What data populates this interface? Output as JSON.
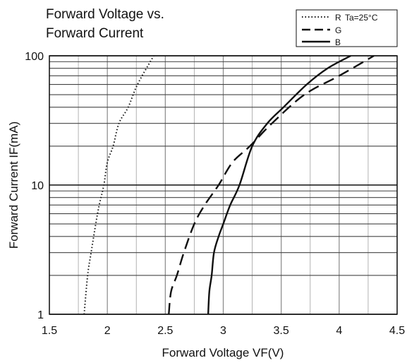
{
  "chart_data": {
    "type": "line",
    "title_lines": [
      "Forward Voltage vs.",
      "Forward Current"
    ],
    "xlabel": "Forward Voltage VF(V)",
    "ylabel": "Forward Current IF(mA)",
    "xlim": [
      1.5,
      4.5
    ],
    "ylim": [
      1,
      100
    ],
    "yscale": "log",
    "x_ticks": [
      1.5,
      2,
      2.5,
      3,
      3.5,
      4,
      4.5
    ],
    "x_tick_labels": [
      "1.5",
      "2",
      "2.5",
      "3",
      "3.5",
      "4",
      "4.5"
    ],
    "y_ticks": [
      1,
      10,
      100
    ],
    "y_tick_labels": [
      "1",
      "10",
      "100"
    ],
    "grid": true,
    "legend_placement": "top-right",
    "legend_note": "Ta=25°C",
    "series": [
      {
        "name": "R",
        "style": "dotted",
        "x": [
          1.8,
          1.83,
          1.86,
          1.9,
          1.93,
          1.97,
          2.0,
          2.05,
          2.1,
          2.18,
          2.26,
          2.4
        ],
        "y": [
          1,
          2,
          3,
          5,
          7,
          10,
          15,
          20,
          30,
          40,
          60,
          100
        ]
      },
      {
        "name": "G",
        "style": "dashed",
        "x": [
          2.53,
          2.55,
          2.6,
          2.66,
          2.75,
          2.84,
          2.96,
          3.08,
          3.23,
          3.42,
          3.7,
          4.0,
          4.3
        ],
        "y": [
          1,
          1.5,
          2,
          3,
          5,
          7,
          10,
          15,
          20,
          30,
          50,
          70,
          100
        ]
      },
      {
        "name": "B",
        "style": "solid",
        "x": [
          2.87,
          2.88,
          2.9,
          2.92,
          2.96,
          3.0,
          3.06,
          3.14,
          3.25,
          3.38,
          3.52,
          3.72,
          3.9,
          4.1
        ],
        "y": [
          1,
          1.5,
          2,
          3,
          4,
          5,
          7,
          10,
          20,
          30,
          40,
          60,
          80,
          100
        ]
      }
    ]
  }
}
